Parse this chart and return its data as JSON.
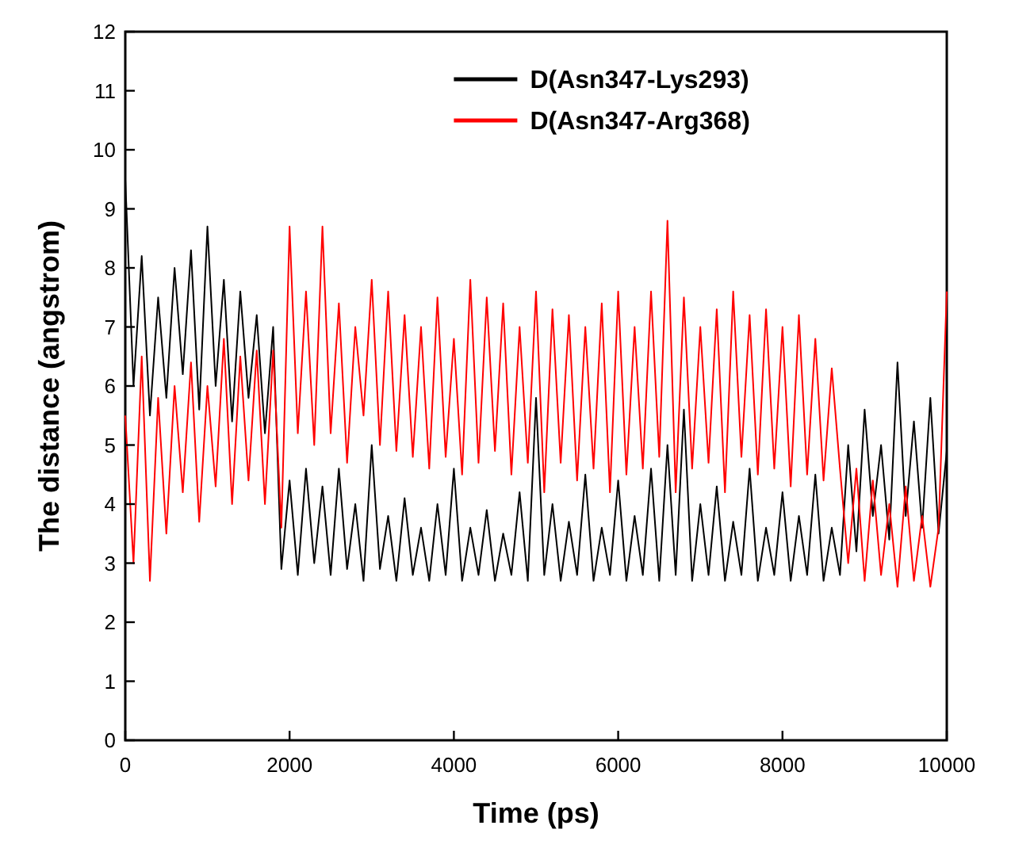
{
  "chart_data": {
    "type": "line",
    "xlabel": "Time (ps)",
    "ylabel": "The distance (angstrom)",
    "x": [
      0,
      100,
      200,
      300,
      400,
      500,
      600,
      700,
      800,
      900,
      1000,
      1100,
      1200,
      1300,
      1400,
      1500,
      1600,
      1700,
      1800,
      1900,
      2000,
      2100,
      2200,
      2300,
      2400,
      2500,
      2600,
      2700,
      2800,
      2900,
      3000,
      3100,
      3200,
      3300,
      3400,
      3500,
      3600,
      3700,
      3800,
      3900,
      4000,
      4100,
      4200,
      4300,
      4400,
      4500,
      4600,
      4700,
      4800,
      4900,
      5000,
      5100,
      5200,
      5300,
      5400,
      5500,
      5600,
      5700,
      5800,
      5900,
      6000,
      6100,
      6200,
      6300,
      6400,
      6500,
      6600,
      6700,
      6800,
      6900,
      7000,
      7100,
      7200,
      7300,
      7400,
      7500,
      7600,
      7700,
      7800,
      7900,
      8000,
      8100,
      8200,
      8300,
      8400,
      8500,
      8600,
      8700,
      8800,
      8900,
      9000,
      9100,
      9200,
      9300,
      9400,
      9500,
      9600,
      9700,
      9800,
      9900,
      10000
    ],
    "series": [
      {
        "name": "D(Asn347-Lys293)",
        "color": "#000000",
        "values": [
          9.5,
          6.0,
          8.2,
          5.5,
          7.5,
          5.8,
          8.0,
          6.2,
          8.3,
          5.6,
          8.7,
          6.0,
          7.8,
          5.4,
          7.6,
          5.8,
          7.2,
          5.2,
          7.0,
          2.9,
          4.4,
          2.8,
          4.6,
          3.0,
          4.3,
          2.8,
          4.6,
          2.9,
          4.0,
          2.7,
          5.0,
          2.9,
          3.8,
          2.7,
          4.1,
          2.8,
          3.6,
          2.7,
          4.0,
          2.8,
          4.6,
          2.7,
          3.6,
          2.8,
          3.9,
          2.7,
          3.5,
          2.8,
          4.2,
          2.7,
          5.8,
          2.8,
          4.0,
          2.7,
          3.7,
          2.8,
          4.5,
          2.7,
          3.6,
          2.8,
          4.4,
          2.7,
          3.8,
          2.8,
          4.6,
          2.7,
          5.0,
          2.8,
          5.6,
          2.7,
          4.0,
          2.8,
          4.3,
          2.7,
          3.7,
          2.8,
          4.6,
          2.7,
          3.6,
          2.8,
          4.2,
          2.7,
          3.8,
          2.8,
          4.5,
          2.7,
          3.6,
          2.8,
          5.0,
          3.2,
          5.6,
          3.8,
          5.0,
          3.4,
          6.4,
          3.8,
          5.4,
          3.6,
          5.8,
          3.5,
          4.9
        ]
      },
      {
        "name": "D(Asn347-Arg368)",
        "color": "#ff0000",
        "values": [
          5.5,
          3.0,
          6.5,
          2.7,
          5.8,
          3.5,
          6.0,
          4.2,
          6.4,
          3.7,
          6.0,
          4.3,
          6.8,
          4.0,
          6.5,
          4.4,
          6.6,
          4.0,
          6.6,
          3.6,
          8.7,
          5.2,
          7.6,
          5.0,
          8.7,
          5.2,
          7.4,
          4.7,
          7.0,
          5.5,
          7.8,
          5.0,
          7.6,
          4.9,
          7.2,
          4.8,
          7.0,
          4.6,
          7.5,
          4.8,
          6.8,
          4.5,
          7.8,
          4.7,
          7.5,
          4.9,
          7.4,
          4.5,
          7.0,
          4.7,
          7.6,
          4.2,
          7.3,
          4.7,
          7.2,
          4.4,
          7.0,
          4.6,
          7.4,
          4.2,
          7.6,
          4.5,
          7.0,
          4.6,
          7.6,
          4.8,
          8.8,
          4.2,
          7.5,
          4.6,
          7.0,
          4.7,
          7.3,
          4.2,
          7.6,
          4.8,
          7.2,
          4.5,
          7.3,
          4.6,
          7.0,
          4.3,
          7.2,
          4.5,
          6.8,
          4.4,
          6.3,
          4.6,
          3.0,
          4.6,
          2.7,
          4.4,
          2.8,
          4.0,
          2.6,
          4.3,
          2.7,
          3.8,
          2.6,
          3.6,
          7.6
        ]
      }
    ],
    "xlim": [
      0,
      10000
    ],
    "xticks": [
      0,
      2000,
      4000,
      6000,
      8000,
      10000
    ],
    "ylim": [
      0,
      12
    ],
    "yticks": [
      0,
      1,
      2,
      3,
      4,
      5,
      6,
      7,
      8,
      9,
      10,
      11,
      12
    ],
    "legend": "top",
    "grid": false
  }
}
